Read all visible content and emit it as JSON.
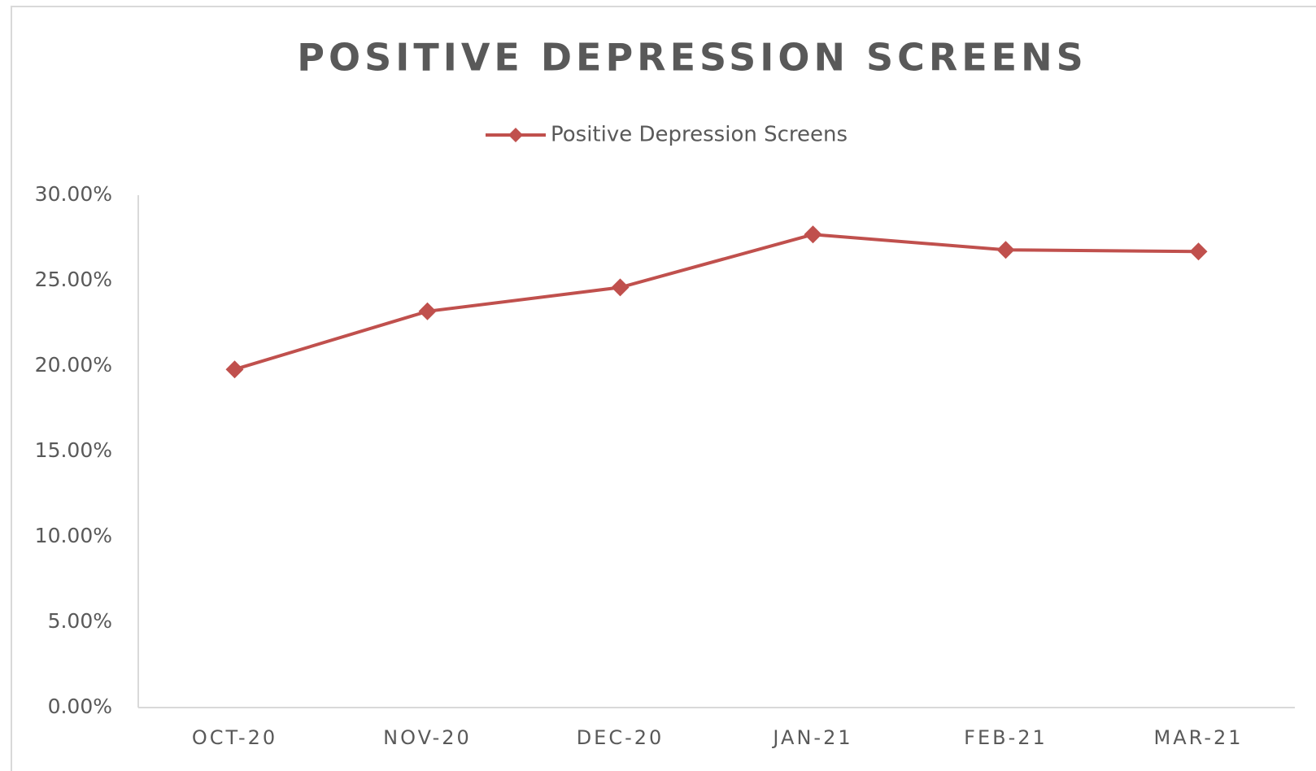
{
  "chart_data": {
    "type": "line",
    "title": "POSITIVE DEPRESSION SCREENS",
    "categories": [
      "OCT-20",
      "NOV-20",
      "DEC-20",
      "JAN-21",
      "FEB-21",
      "MAR-21"
    ],
    "series": [
      {
        "name": "Positive Depression Screens",
        "color": "#c0504d",
        "values": [
          19.8,
          23.2,
          24.6,
          27.7,
          26.8,
          26.7
        ]
      }
    ],
    "ylim": [
      0,
      30
    ],
    "yticks": [
      {
        "value": 0,
        "label": "0.00%"
      },
      {
        "value": 5,
        "label": "5.00%"
      },
      {
        "value": 10,
        "label": "10.00%"
      },
      {
        "value": 15,
        "label": "15.00%"
      },
      {
        "value": 20,
        "label": "20.00%"
      },
      {
        "value": 25,
        "label": "25.00%"
      },
      {
        "value": 30,
        "label": "30.00%"
      }
    ],
    "grid": false,
    "legend": "top"
  }
}
